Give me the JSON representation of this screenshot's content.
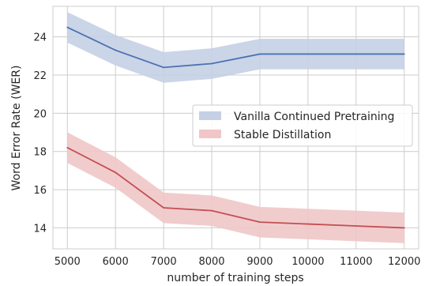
{
  "chart_data": {
    "type": "line",
    "title": "",
    "xlabel": "number of training steps",
    "ylabel": "Word Error Rate (WER)",
    "x": [
      5000,
      6000,
      7000,
      8000,
      9000,
      10000,
      11000,
      12000
    ],
    "xlim": [
      4700,
      12300
    ],
    "ylim": [
      12.9,
      25.6
    ],
    "xticks": [
      5000,
      6000,
      7000,
      8000,
      9000,
      10000,
      11000,
      12000
    ],
    "xtick_labels": [
      "5000",
      "6000",
      "7000",
      "8000",
      "9000",
      "10000",
      "11000",
      "12000"
    ],
    "yticks": [
      14,
      16,
      18,
      20,
      22,
      24
    ],
    "ytick_labels": [
      "14",
      "16",
      "18",
      "20",
      "22",
      "24"
    ],
    "grid": true,
    "legend_position": "center-right",
    "series": [
      {
        "name": "Vanilla Continued Pretraining",
        "color": "#4c72b0",
        "band_color": "#c5d0e5",
        "values": [
          24.5,
          23.3,
          22.4,
          22.6,
          23.1,
          23.1,
          23.1,
          23.1
        ],
        "lower": [
          23.7,
          22.5,
          21.6,
          21.8,
          22.3,
          22.3,
          22.3,
          22.3
        ],
        "upper": [
          25.3,
          24.1,
          23.2,
          23.4,
          23.9,
          23.9,
          23.9,
          23.9
        ]
      },
      {
        "name": "Stable Distillation",
        "color": "#c44e52",
        "band_color": "#f0c6c8",
        "values": [
          18.2,
          16.9,
          15.05,
          14.9,
          14.3,
          14.2,
          14.1,
          14.0
        ],
        "lower": [
          17.4,
          16.1,
          14.25,
          14.1,
          13.5,
          13.4,
          13.3,
          13.2
        ],
        "upper": [
          19.0,
          17.7,
          15.85,
          15.7,
          15.1,
          15.0,
          14.9,
          14.8
        ]
      }
    ]
  }
}
